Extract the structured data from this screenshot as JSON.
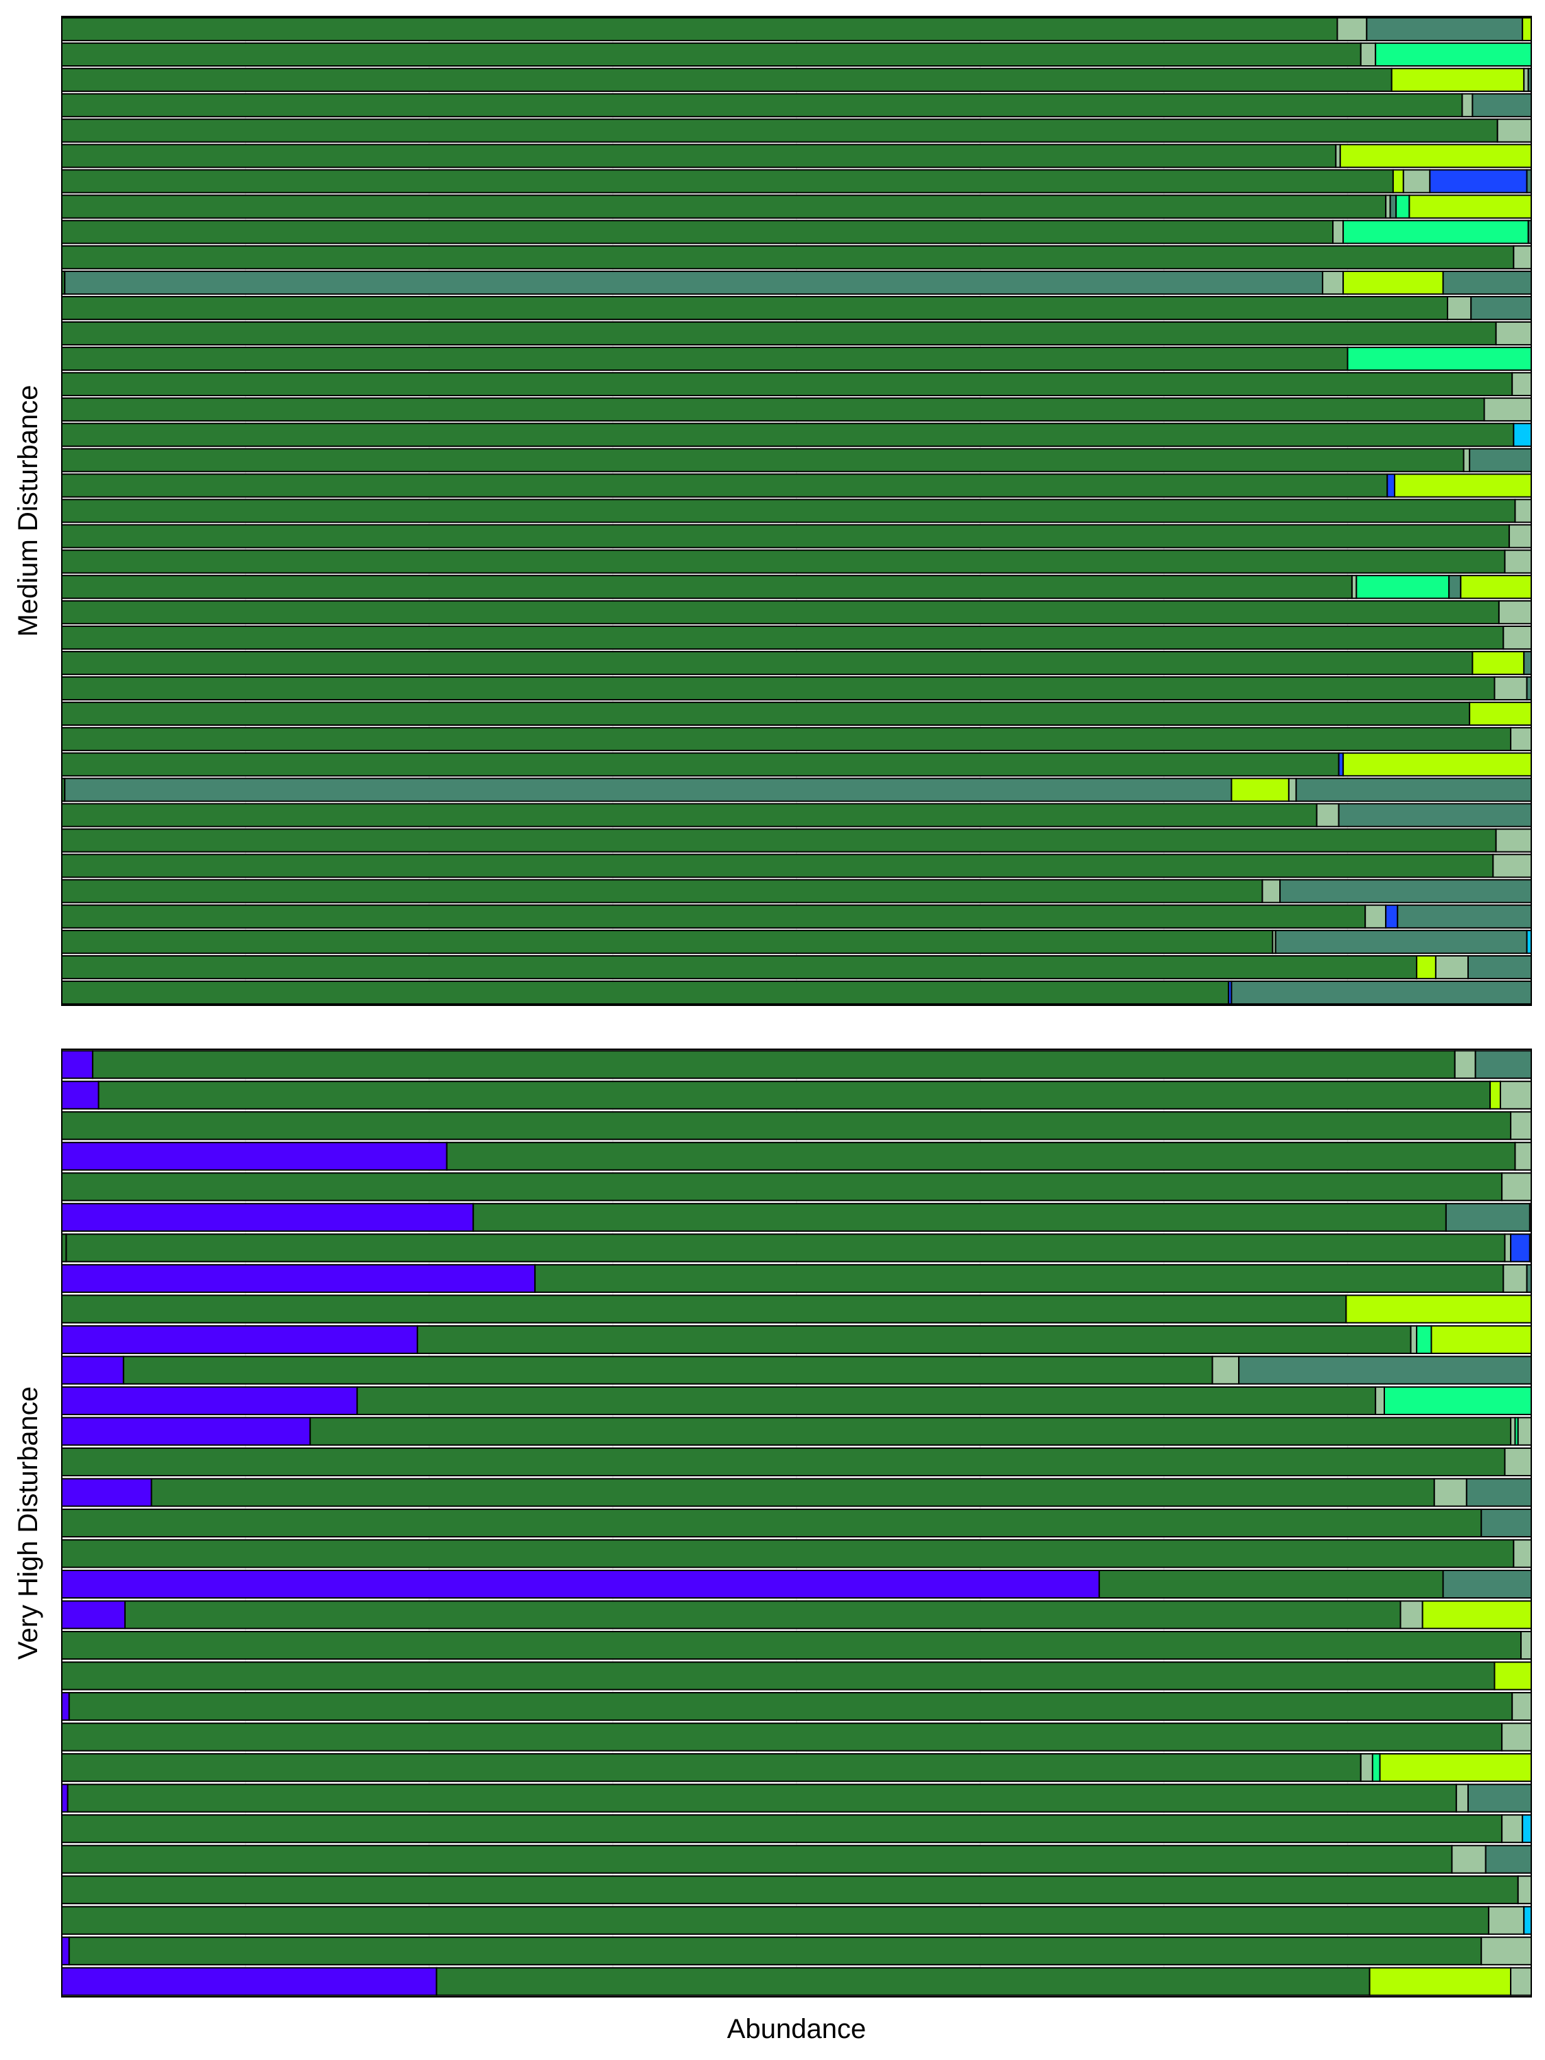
{
  "chart_data": {
    "type": "bar",
    "orientation": "horizontal",
    "stacked": true,
    "normalized": true,
    "xlabel": "Abundance",
    "xlim": [
      0,
      1
    ],
    "grid": true,
    "legend": "none",
    "taxa_colors": {
      "A": "#2b7a32",
      "B": "#9fc6a0",
      "C": "#468570",
      "D": "#b3ff00",
      "E": "#0fff89",
      "F": "#1a46ff",
      "G": "#00c8ff",
      "H": "#4d00ff"
    },
    "panels": [
      {
        "label": "Medium Disturbance",
        "rows": [
          [
            [
              "A",
              0.868
            ],
            [
              "B",
              0.02
            ],
            [
              "C",
              0.106
            ],
            [
              "D",
              0.006
            ]
          ],
          [
            [
              "A",
              0.884
            ],
            [
              "B",
              0.01
            ],
            [
              "E",
              0.106
            ]
          ],
          [
            [
              "A",
              0.905
            ],
            [
              "D",
              0.09
            ],
            [
              "B",
              0.003
            ],
            [
              "C",
              0.002
            ]
          ],
          [
            [
              "A",
              0.953
            ],
            [
              "B",
              0.007
            ],
            [
              "C",
              0.04
            ]
          ],
          [
            [
              "A",
              0.977
            ],
            [
              "B",
              0.023
            ]
          ],
          [
            [
              "A",
              0.867
            ],
            [
              "B",
              0.003
            ],
            [
              "D",
              0.13
            ]
          ],
          [
            [
              "A",
              0.906
            ],
            [
              "D",
              0.007
            ],
            [
              "B",
              0.018
            ],
            [
              "F",
              0.066
            ],
            [
              "C",
              0.003
            ]
          ],
          [
            [
              "A",
              0.901
            ],
            [
              "B",
              0.003
            ],
            [
              "C",
              0.004
            ],
            [
              "E",
              0.009
            ],
            [
              "D",
              0.083
            ]
          ],
          [
            [
              "A",
              0.865
            ],
            [
              "B",
              0.007
            ],
            [
              "E",
              0.126
            ],
            [
              "C",
              0.002
            ]
          ],
          [
            [
              "A",
              0.988
            ],
            [
              "B",
              0.012
            ]
          ],
          [
            [
              "A",
              0.002
            ],
            [
              "C",
              0.856
            ],
            [
              "B",
              0.014
            ],
            [
              "D",
              0.068
            ],
            [
              "C",
              0.06
            ]
          ],
          [
            [
              "A",
              0.943
            ],
            [
              "B",
              0.016
            ],
            [
              "C",
              0.041
            ]
          ],
          [
            [
              "A",
              0.976
            ],
            [
              "B",
              0.024
            ]
          ],
          [
            [
              "A",
              0.875
            ],
            [
              "E",
              0.125
            ]
          ],
          [
            [
              "A",
              0.987
            ],
            [
              "B",
              0.013
            ]
          ],
          [
            [
              "A",
              0.968
            ],
            [
              "B",
              0.032
            ]
          ],
          [
            [
              "A",
              0.988
            ],
            [
              "G",
              0.012
            ]
          ],
          [
            [
              "A",
              0.954
            ],
            [
              "B",
              0.004
            ],
            [
              "C",
              0.042
            ]
          ],
          [
            [
              "A",
              0.902
            ],
            [
              "F",
              0.005
            ],
            [
              "D",
              0.093
            ]
          ],
          [
            [
              "A",
              0.989
            ],
            [
              "B",
              0.011
            ]
          ],
          [
            [
              "A",
              0.985
            ],
            [
              "B",
              0.015
            ]
          ],
          [
            [
              "A",
              0.982
            ],
            [
              "B",
              0.018
            ]
          ],
          [
            [
              "A",
              0.878
            ],
            [
              "B",
              0.003
            ],
            [
              "E",
              0.063
            ],
            [
              "C",
              0.008
            ],
            [
              "D",
              0.048
            ]
          ],
          [
            [
              "A",
              0.978
            ],
            [
              "B",
              0.022
            ]
          ],
          [
            [
              "A",
              0.981
            ],
            [
              "B",
              0.019
            ]
          ],
          [
            [
              "A",
              0.96
            ],
            [
              "D",
              0.035
            ],
            [
              "C",
              0.005
            ]
          ],
          [
            [
              "A",
              0.975
            ],
            [
              "B",
              0.022
            ],
            [
              "C",
              0.003
            ]
          ],
          [
            [
              "A",
              0.958
            ],
            [
              "D",
              0.042
            ]
          ],
          [
            [
              "A",
              0.986
            ],
            [
              "B",
              0.014
            ]
          ],
          [
            [
              "A",
              0.869
            ],
            [
              "F",
              0.003
            ],
            [
              "D",
              0.128
            ]
          ],
          [
            [
              "A",
              0.002
            ],
            [
              "C",
              0.794
            ],
            [
              "D",
              0.039
            ],
            [
              "B",
              0.005
            ],
            [
              "C",
              0.16
            ]
          ],
          [
            [
              "A",
              0.854
            ],
            [
              "B",
              0.015
            ],
            [
              "C",
              0.131
            ]
          ],
          [
            [
              "A",
              0.976
            ],
            [
              "B",
              0.024
            ]
          ],
          [
            [
              "A",
              0.974
            ],
            [
              "B",
              0.026
            ]
          ],
          [
            [
              "A",
              0.817
            ],
            [
              "B",
              0.012
            ],
            [
              "C",
              0.171
            ]
          ],
          [
            [
              "A",
              0.887
            ],
            [
              "B",
              0.014
            ],
            [
              "F",
              0.008
            ],
            [
              "C",
              0.091
            ]
          ],
          [
            [
              "A",
              0.824
            ],
            [
              "B",
              0.002
            ],
            [
              "C",
              0.171
            ],
            [
              "G",
              0.003
            ]
          ],
          [
            [
              "A",
              0.922
            ],
            [
              "D",
              0.013
            ],
            [
              "B",
              0.022
            ],
            [
              "C",
              0.043
            ]
          ],
          [
            [
              "A",
              0.794
            ],
            [
              "F",
              0.002
            ],
            [
              "C",
              0.204
            ]
          ]
        ]
      },
      {
        "label": "Very High Disturbance",
        "rows": [
          [
            [
              "H",
              0.021
            ],
            [
              "A",
              0.927
            ],
            [
              "B",
              0.014
            ],
            [
              "C",
              0.038
            ]
          ],
          [
            [
              "H",
              0.025
            ],
            [
              "A",
              0.947
            ],
            [
              "D",
              0.007
            ],
            [
              "B",
              0.021
            ]
          ],
          [
            [
              "A",
              0.986
            ],
            [
              "B",
              0.014
            ]
          ],
          [
            [
              "H",
              0.262
            ],
            [
              "A",
              0.727
            ],
            [
              "B",
              0.011
            ]
          ],
          [
            [
              "A",
              0.98
            ],
            [
              "B",
              0.02
            ]
          ],
          [
            [
              "H",
              0.28
            ],
            [
              "A",
              0.662
            ],
            [
              "C",
              0.057
            ],
            [
              "B",
              0.001
            ]
          ],
          [
            [
              "A",
              0.003
            ],
            [
              "A",
              0.979
            ],
            [
              "B",
              0.004
            ],
            [
              "F",
              0.013
            ],
            [
              "B",
              0.001
            ]
          ],
          [
            [
              "H",
              0.322
            ],
            [
              "A",
              0.659
            ],
            [
              "B",
              0.016
            ],
            [
              "C",
              0.003
            ]
          ],
          [
            [
              "A",
              0.874
            ],
            [
              "D",
              0.126
            ]
          ],
          [
            [
              "H",
              0.242
            ],
            [
              "A",
              0.676
            ],
            [
              "B",
              0.004
            ],
            [
              "E",
              0.01
            ],
            [
              "D",
              0.068
            ]
          ],
          [
            [
              "H",
              0.042
            ],
            [
              "A",
              0.741
            ],
            [
              "B",
              0.018
            ],
            [
              "C",
              0.199
            ]
          ],
          [
            [
              "H",
              0.201
            ],
            [
              "A",
              0.693
            ],
            [
              "B",
              0.006
            ],
            [
              "E",
              0.1
            ]
          ],
          [
            [
              "H",
              0.169
            ],
            [
              "A",
              0.817
            ],
            [
              "B",
              0.003
            ],
            [
              "E",
              0.002
            ],
            [
              "B",
              0.009
            ]
          ],
          [
            [
              "A",
              0.982
            ],
            [
              "B",
              0.018
            ]
          ],
          [
            [
              "H",
              0.061
            ],
            [
              "A",
              0.873
            ],
            [
              "B",
              0.022
            ],
            [
              "C",
              0.044
            ]
          ],
          [
            [
              "A",
              0.966
            ],
            [
              "C",
              0.034
            ]
          ],
          [
            [
              "A",
              0.988
            ],
            [
              "B",
              0.012
            ]
          ],
          [
            [
              "H",
              0.706
            ],
            [
              "A",
              0.234
            ],
            [
              "C",
              0.06
            ]
          ],
          [
            [
              "H",
              0.043
            ],
            [
              "A",
              0.868
            ],
            [
              "B",
              0.015
            ],
            [
              "D",
              0.074
            ]
          ],
          [
            [
              "A",
              0.993
            ],
            [
              "B",
              0.007
            ]
          ],
          [
            [
              "A",
              0.975
            ],
            [
              "D",
              0.025
            ]
          ],
          [
            [
              "H",
              0.005
            ],
            [
              "A",
              0.982
            ],
            [
              "B",
              0.013
            ]
          ],
          [
            [
              "A",
              0.98
            ],
            [
              "B",
              0.02
            ]
          ],
          [
            [
              "A",
              0.884
            ],
            [
              "B",
              0.008
            ],
            [
              "E",
              0.005
            ],
            [
              "D",
              0.103
            ]
          ],
          [
            [
              "H",
              0.004
            ],
            [
              "A",
              0.945
            ],
            [
              "B",
              0.008
            ],
            [
              "C",
              0.043
            ]
          ],
          [
            [
              "A",
              0.98
            ],
            [
              "B",
              0.014
            ],
            [
              "G",
              0.006
            ]
          ],
          [
            [
              "A",
              0.946
            ],
            [
              "B",
              0.023
            ],
            [
              "C",
              0.031
            ]
          ],
          [
            [
              "A",
              0.991
            ],
            [
              "B",
              0.009
            ]
          ],
          [
            [
              "A",
              0.971
            ],
            [
              "B",
              0.024
            ],
            [
              "G",
              0.005
            ]
          ],
          [
            [
              "H",
              0.005
            ],
            [
              "A",
              0.961
            ],
            [
              "B",
              0.034
            ]
          ],
          [
            [
              "H",
              0.255
            ],
            [
              "A",
              0.635
            ],
            [
              "D",
              0.096
            ],
            [
              "B",
              0.014
            ]
          ]
        ]
      }
    ]
  }
}
